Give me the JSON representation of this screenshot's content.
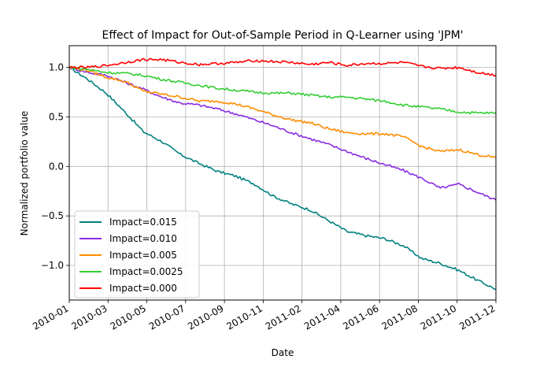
{
  "chart_data": {
    "type": "line",
    "title": "Effect of Impact for Out-of-Sample Period in Q-Learner using 'JPM'",
    "xlabel": "Date",
    "ylabel": "Normalized portfolio value",
    "x_ticks": [
      "2010-01",
      "2010-03",
      "2010-05",
      "2010-07",
      "2010-09",
      "2010-11",
      "2011-02",
      "2011-04",
      "2011-06",
      "2011-08",
      "2011-10",
      "2011-12"
    ],
    "x_range": [
      "2010-01",
      "2011-12"
    ],
    "y_ticks": [
      "1.0",
      "0.5",
      "0.0",
      "−0.5",
      "−1.0"
    ],
    "y_tick_values": [
      1.0,
      0.5,
      0.0,
      -0.5,
      -1.0
    ],
    "ylim": [
      -1.35,
      1.22
    ],
    "grid": true,
    "legend_position": "lower-left",
    "x": [
      "2010-01",
      "2010-02",
      "2010-03",
      "2010-04",
      "2010-05",
      "2010-06",
      "2010-07",
      "2010-08",
      "2010-09",
      "2010-10",
      "2010-11",
      "2010-12",
      "2011-01",
      "2011-02",
      "2011-03",
      "2011-04",
      "2011-05",
      "2011-06",
      "2011-07",
      "2011-08",
      "2011-09",
      "2011-10",
      "2011-11",
      "2011-12"
    ],
    "series": [
      {
        "name": "Impact=0.015",
        "color": "#008080",
        "values": [
          1.0,
          0.88,
          0.74,
          0.55,
          0.35,
          0.25,
          0.12,
          0.03,
          -0.05,
          -0.1,
          -0.18,
          -0.3,
          -0.38,
          -0.44,
          -0.55,
          -0.66,
          -0.7,
          -0.73,
          -0.8,
          -0.93,
          -0.98,
          -1.05,
          -1.15,
          -1.24
        ]
      },
      {
        "name": "Impact=0.010",
        "color": "#8a2be2",
        "values": [
          1.0,
          0.95,
          0.92,
          0.85,
          0.78,
          0.7,
          0.64,
          0.62,
          0.58,
          0.53,
          0.47,
          0.41,
          0.34,
          0.28,
          0.22,
          0.15,
          0.08,
          0.02,
          -0.04,
          -0.12,
          -0.22,
          -0.18,
          -0.26,
          -0.34
        ]
      },
      {
        "name": "Impact=0.005",
        "color": "#ff8c00",
        "values": [
          1.0,
          0.97,
          0.9,
          0.86,
          0.76,
          0.73,
          0.7,
          0.66,
          0.66,
          0.63,
          0.58,
          0.52,
          0.47,
          0.44,
          0.38,
          0.34,
          0.33,
          0.33,
          0.3,
          0.2,
          0.15,
          0.17,
          0.12,
          0.09
        ]
      },
      {
        "name": "Impact=0.0025",
        "color": "#32cd32",
        "values": [
          1.0,
          0.98,
          0.95,
          0.94,
          0.92,
          0.88,
          0.85,
          0.82,
          0.79,
          0.77,
          0.75,
          0.74,
          0.74,
          0.72,
          0.7,
          0.7,
          0.68,
          0.66,
          0.62,
          0.6,
          0.58,
          0.55,
          0.54,
          0.54
        ]
      },
      {
        "name": "Impact=0.000",
        "color": "#ff0000",
        "values": [
          1.0,
          1.0,
          1.02,
          1.05,
          1.08,
          1.08,
          1.05,
          1.03,
          1.04,
          1.05,
          1.07,
          1.06,
          1.05,
          1.03,
          1.05,
          1.02,
          1.04,
          1.04,
          1.05,
          1.01,
          0.99,
          1.0,
          0.95,
          0.92
        ]
      }
    ]
  }
}
